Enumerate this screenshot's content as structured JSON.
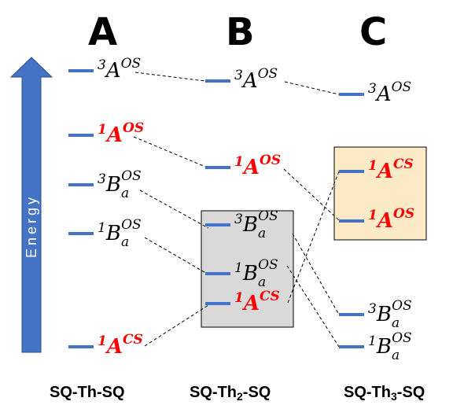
{
  "columns": [
    {
      "letter": "A",
      "name": "SQ-Th-SQ"
    },
    {
      "letter": "B",
      "name": "SQ-Th",
      "sub": "2",
      "tail": "-SQ"
    },
    {
      "letter": "C",
      "name": "SQ-Th",
      "sub": "3",
      "tail": "-SQ"
    }
  ],
  "energy_label": "Energy",
  "levels": {
    "A": [
      {
        "mult": "3",
        "term": "A",
        "sub": "",
        "sup": "OS",
        "red": false
      },
      {
        "mult": "1",
        "term": "A",
        "sub": "",
        "sup": "OS",
        "red": true
      },
      {
        "mult": "3",
        "term": "B",
        "sub": "a",
        "sup": "OS",
        "red": false
      },
      {
        "mult": "1",
        "term": "B",
        "sub": "a",
        "sup": "OS",
        "red": false
      },
      {
        "mult": "1",
        "term": "A",
        "sub": "",
        "sup": "CS",
        "red": true
      }
    ],
    "B": [
      {
        "mult": "3",
        "term": "A",
        "sub": "",
        "sup": "OS",
        "red": false
      },
      {
        "mult": "1",
        "term": "A",
        "sub": "",
        "sup": "OS",
        "red": true
      },
      {
        "mult": "3",
        "term": "B",
        "sub": "a",
        "sup": "OS",
        "red": false
      },
      {
        "mult": "1",
        "term": "B",
        "sub": "a",
        "sup": "OS",
        "red": false
      },
      {
        "mult": "1",
        "term": "A",
        "sub": "",
        "sup": "CS",
        "red": true
      }
    ],
    "C": [
      {
        "mult": "3",
        "term": "A",
        "sub": "",
        "sup": "OS",
        "red": false
      },
      {
        "mult": "1",
        "term": "A",
        "sub": "",
        "sup": "CS",
        "red": true
      },
      {
        "mult": "1",
        "term": "A",
        "sub": "",
        "sup": "OS",
        "red": true
      },
      {
        "mult": "3",
        "term": "B",
        "sub": "a",
        "sup": "OS",
        "red": false
      },
      {
        "mult": "1",
        "term": "B",
        "sub": "a",
        "sup": "OS",
        "red": false
      }
    ]
  },
  "colors": {
    "level_bar": "#4472c4",
    "arrow": "#4472c4",
    "highlight_red": "#ff0000",
    "box_B": "#d9d9d9",
    "box_C": "#fdebc8"
  }
}
